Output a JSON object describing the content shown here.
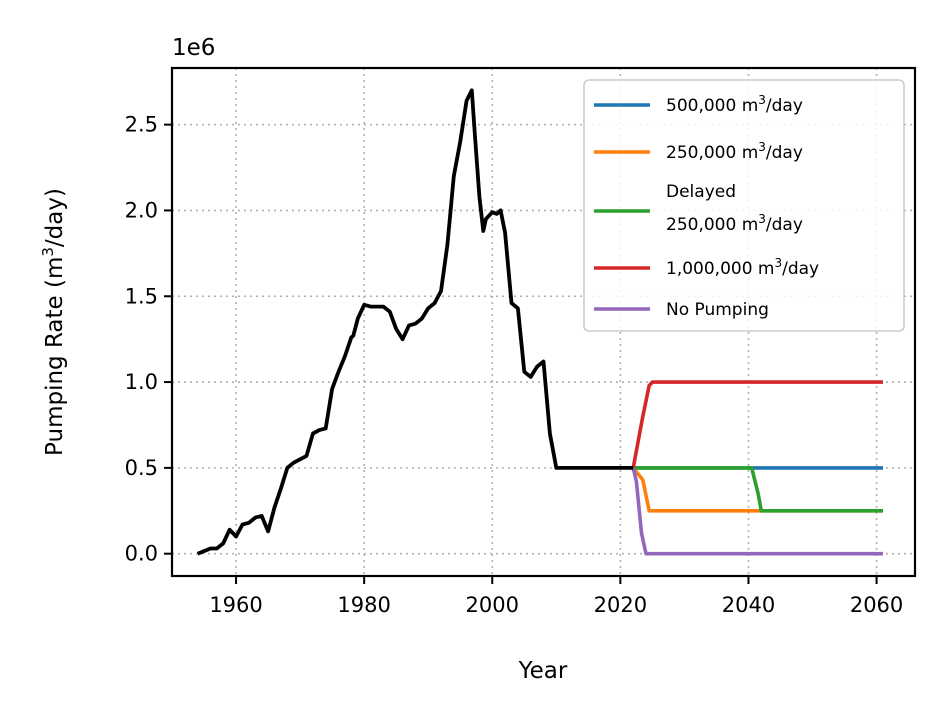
{
  "chart_data": {
    "type": "line",
    "xlabel": "Year",
    "ylabel_main": "Pumping Rate (m",
    "ylabel_sup": "3",
    "ylabel_tail": "/day)",
    "offset_text": "1e6",
    "xlim": [
      1950,
      2066
    ],
    "ylim": [
      -130000,
      2830000
    ],
    "xticks": [
      1960,
      1980,
      2000,
      2020,
      2040,
      2060
    ],
    "xtick_labels": [
      "1960",
      "1980",
      "2000",
      "2020",
      "2040",
      "2060"
    ],
    "yticks": [
      0,
      500000,
      1000000,
      1500000,
      2000000,
      2500000
    ],
    "ytick_labels": [
      "0.0",
      "0.5",
      "1.0",
      "1.5",
      "2.0",
      "2.5"
    ],
    "grid": true,
    "legend_position": "upper-right",
    "historical": {
      "color": "#000000",
      "x": [
        1954,
        1956,
        1957,
        1958,
        1959,
        1960,
        1961,
        1962,
        1963,
        1964,
        1965,
        1966,
        1967,
        1968,
        1969,
        1970,
        1971,
        1972,
        1973,
        1974,
        1975,
        1976,
        1977,
        1978,
        1978.3,
        1979,
        1980,
        1981,
        1982,
        1983,
        1984,
        1985,
        1986,
        1987,
        1988,
        1989,
        1990,
        1991,
        1992,
        1993,
        1994,
        1995,
        1996,
        1996.8,
        1997.3,
        1998,
        1998.6,
        1999,
        2000,
        2000.7,
        2001.3,
        2002,
        2003,
        2004,
        2005,
        2006,
        2007,
        2008,
        2009,
        2010,
        2015,
        2020,
        2022
      ],
      "y": [
        0,
        30000,
        30000,
        60000,
        140000,
        100000,
        170000,
        180000,
        210000,
        220000,
        130000,
        270000,
        380000,
        500000,
        530000,
        550000,
        570000,
        700000,
        720000,
        730000,
        960000,
        1060000,
        1150000,
        1260000,
        1270000,
        1370000,
        1450000,
        1440000,
        1440000,
        1440000,
        1410000,
        1310000,
        1250000,
        1330000,
        1340000,
        1370000,
        1430000,
        1460000,
        1530000,
        1800000,
        2200000,
        2400000,
        2640000,
        2700000,
        2430000,
        2080000,
        1880000,
        1950000,
        1990000,
        1980000,
        2000000,
        1870000,
        1460000,
        1430000,
        1060000,
        1030000,
        1090000,
        1120000,
        700000,
        500000,
        500000,
        500000,
        500000
      ]
    },
    "series": [
      {
        "name": "500,000 m",
        "sup": "3",
        "tail": "/day",
        "color": "#1f77b4",
        "x": [
          2022,
          2061
        ],
        "y": [
          500000,
          500000
        ]
      },
      {
        "name": "250,000 m",
        "sup": "3",
        "tail": "/day",
        "color": "#ff7f0e",
        "x": [
          2022,
          2023.5,
          2024.5,
          2061
        ],
        "y": [
          500000,
          430000,
          250000,
          250000
        ]
      },
      {
        "name": "Delayed",
        "line2": "250,000 m",
        "sup": "3",
        "tail": "/day",
        "color": "#2ca02c",
        "x": [
          2022,
          2040.5,
          2041.5,
          2042,
          2061
        ],
        "y": [
          500000,
          500000,
          350000,
          250000,
          250000
        ]
      },
      {
        "name": "1,000,000 m",
        "sup": "3",
        "tail": "/day",
        "color": "#d62728",
        "x": [
          2022,
          2023.5,
          2024.5,
          2025,
          2061
        ],
        "y": [
          500000,
          800000,
          980000,
          1000000,
          1000000
        ]
      },
      {
        "name": "No Pumping",
        "color": "#9467bd",
        "x": [
          2022,
          2022.5,
          2023.3,
          2024,
          2061
        ],
        "y": [
          500000,
          420000,
          120000,
          0,
          0
        ]
      }
    ]
  }
}
